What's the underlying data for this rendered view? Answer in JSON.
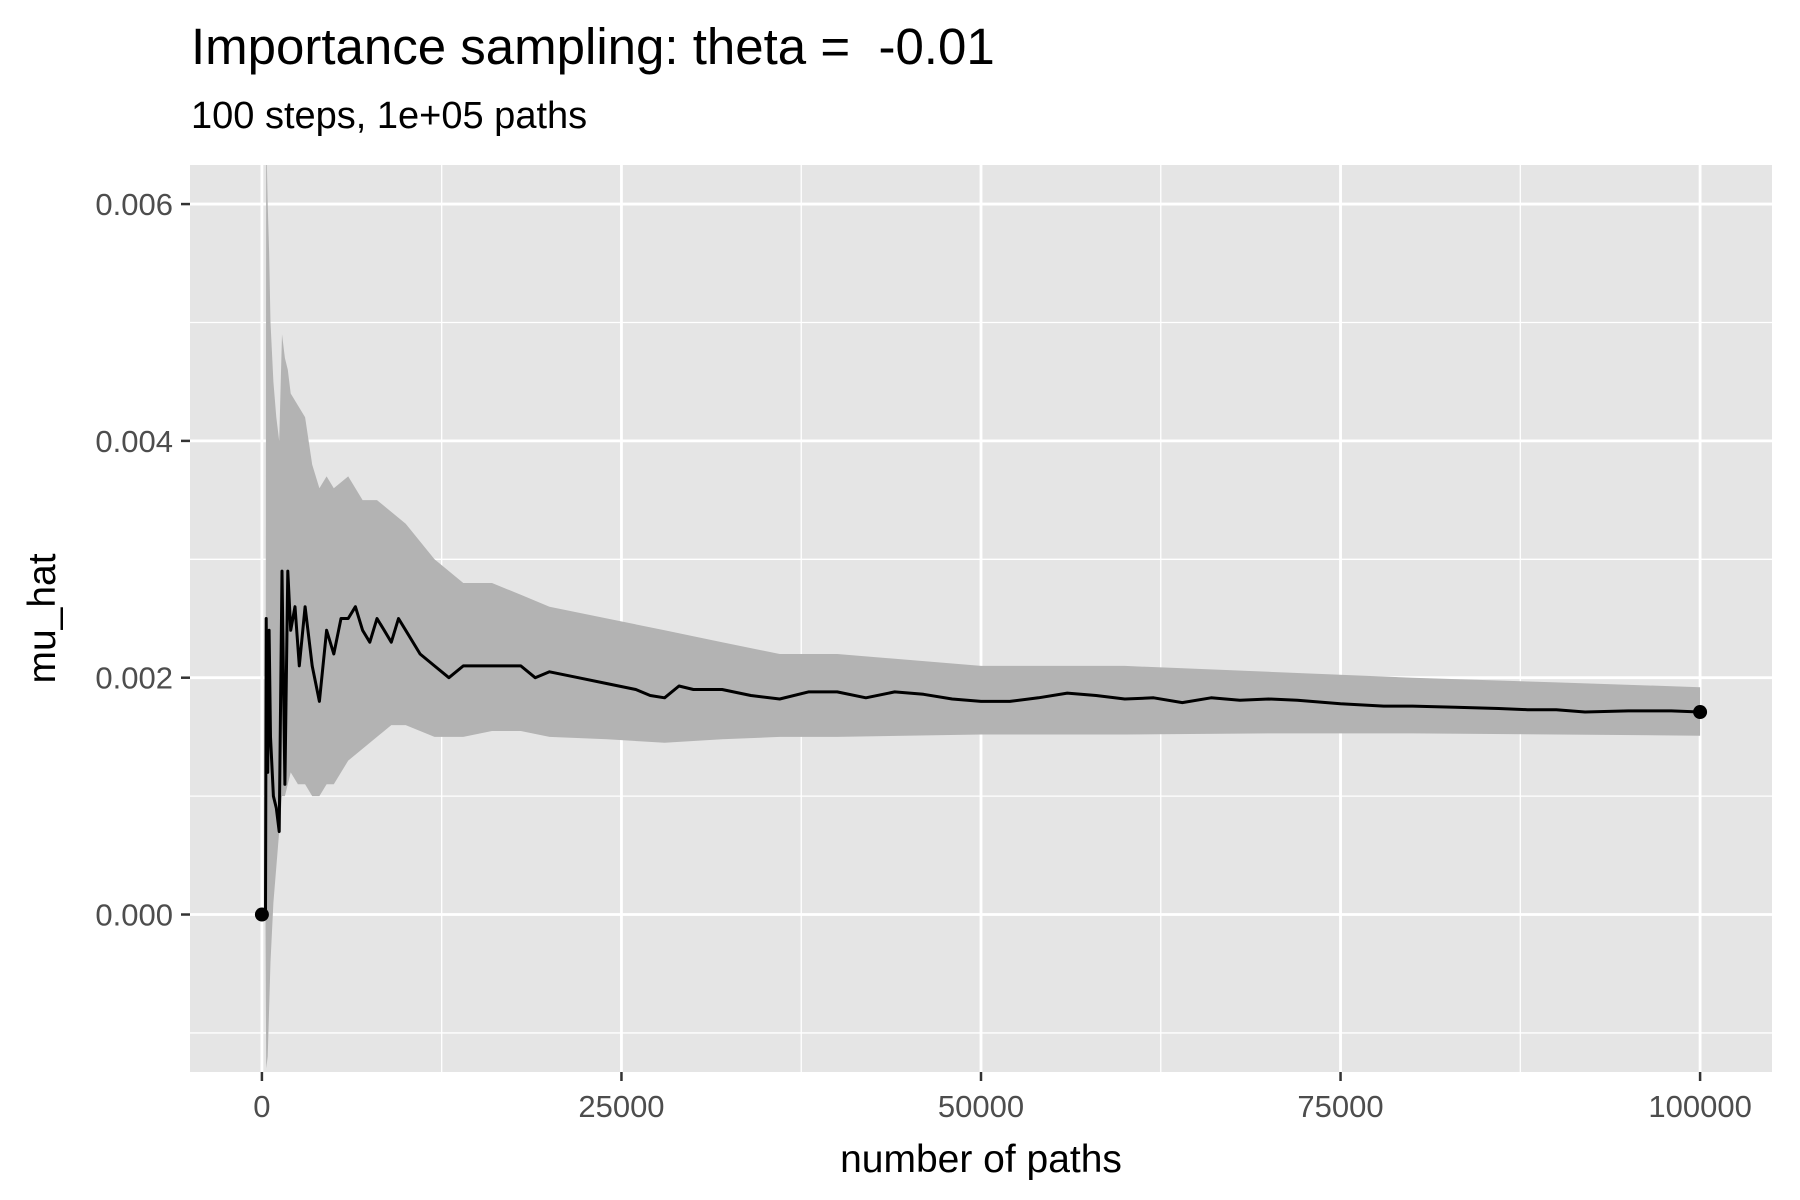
{
  "chart_data": {
    "type": "line",
    "title": "Importance sampling: theta =  -0.01",
    "subtitle": "100 steps, 1e+05 paths",
    "xlabel": "number of paths",
    "ylabel": "mu_hat",
    "xlim": [
      -5000,
      105000
    ],
    "ylim": [
      -0.00133,
      0.00633
    ],
    "x_ticks": [
      0,
      25000,
      50000,
      75000,
      100000
    ],
    "x_tick_labels": [
      "0",
      "25000",
      "50000",
      "75000",
      "100000"
    ],
    "y_ticks": [
      0.0,
      0.002,
      0.004,
      0.006
    ],
    "y_tick_labels": [
      "0.000",
      "0.002",
      "0.004",
      "0.006"
    ],
    "grid": true,
    "colors": {
      "panel": "#e5e5e5",
      "grid": "#ffffff",
      "line": "#000000",
      "ribbon": "#b3b3b3"
    },
    "series": [
      {
        "values": [
          [
            0,
            0.0
          ],
          [
            250,
            0.0
          ],
          [
            300,
            0.0025
          ],
          [
            400,
            0.0012
          ],
          [
            500,
            0.0024
          ],
          [
            600,
            0.0015
          ],
          [
            800,
            0.001
          ],
          [
            1000,
            0.0009
          ],
          [
            1200,
            0.0007
          ],
          [
            1400,
            0.0029
          ],
          [
            1600,
            0.0011
          ],
          [
            1800,
            0.0029
          ],
          [
            2000,
            0.0024
          ],
          [
            2300,
            0.0026
          ],
          [
            2600,
            0.0021
          ],
          [
            3000,
            0.0026
          ],
          [
            3500,
            0.0021
          ],
          [
            4000,
            0.0018
          ],
          [
            4500,
            0.0024
          ],
          [
            5000,
            0.0022
          ],
          [
            5500,
            0.0025
          ],
          [
            6000,
            0.0025
          ],
          [
            6500,
            0.0026
          ],
          [
            7000,
            0.0024
          ],
          [
            7500,
            0.0023
          ],
          [
            8000,
            0.0025
          ],
          [
            8500,
            0.0024
          ],
          [
            9000,
            0.0023
          ],
          [
            9500,
            0.0025
          ],
          [
            10000,
            0.0024
          ],
          [
            11000,
            0.0022
          ],
          [
            12000,
            0.0021
          ],
          [
            13000,
            0.002
          ],
          [
            14000,
            0.0021
          ],
          [
            15000,
            0.0021
          ],
          [
            16000,
            0.0021
          ],
          [
            17000,
            0.0021
          ],
          [
            18000,
            0.0021
          ],
          [
            19000,
            0.002
          ],
          [
            20000,
            0.00205
          ],
          [
            22000,
            0.002
          ],
          [
            24000,
            0.00195
          ],
          [
            26000,
            0.0019
          ],
          [
            27000,
            0.00185
          ],
          [
            28000,
            0.00183
          ],
          [
            29000,
            0.00193
          ],
          [
            30000,
            0.0019
          ],
          [
            32000,
            0.0019
          ],
          [
            34000,
            0.00185
          ],
          [
            36000,
            0.00182
          ],
          [
            38000,
            0.00188
          ],
          [
            40000,
            0.00188
          ],
          [
            42000,
            0.00183
          ],
          [
            44000,
            0.00188
          ],
          [
            46000,
            0.00186
          ],
          [
            48000,
            0.00182
          ],
          [
            50000,
            0.0018
          ],
          [
            52000,
            0.0018
          ],
          [
            54000,
            0.00183
          ],
          [
            56000,
            0.00187
          ],
          [
            58000,
            0.00185
          ],
          [
            60000,
            0.00182
          ],
          [
            62000,
            0.00183
          ],
          [
            64000,
            0.00179
          ],
          [
            66000,
            0.00183
          ],
          [
            68000,
            0.00181
          ],
          [
            70000,
            0.00182
          ],
          [
            72000,
            0.00181
          ],
          [
            75000,
            0.00178
          ],
          [
            78000,
            0.00176
          ],
          [
            80000,
            0.00176
          ],
          [
            83000,
            0.00175
          ],
          [
            86000,
            0.00174
          ],
          [
            88000,
            0.00173
          ],
          [
            90000,
            0.00173
          ],
          [
            92000,
            0.00171
          ],
          [
            95000,
            0.00172
          ],
          [
            98000,
            0.00172
          ],
          [
            100000,
            0.00171
          ]
        ]
      }
    ],
    "ribbon": {
      "x": [
        0,
        250,
        300,
        400,
        500,
        600,
        800,
        1000,
        1200,
        1400,
        1600,
        1800,
        2000,
        2500,
        3000,
        3500,
        4000,
        4500,
        5000,
        6000,
        7000,
        8000,
        9000,
        10000,
        12000,
        14000,
        16000,
        18000,
        20000,
        24000,
        28000,
        32000,
        36000,
        40000,
        50000,
        60000,
        70000,
        80000,
        90000,
        100000
      ],
      "upper": [
        0.0,
        0.0,
        0.0066,
        0.006,
        0.0056,
        0.005,
        0.0045,
        0.0042,
        0.004,
        0.0049,
        0.0047,
        0.0046,
        0.0044,
        0.0043,
        0.0042,
        0.0038,
        0.0036,
        0.0037,
        0.0036,
        0.0037,
        0.0035,
        0.0035,
        0.0034,
        0.0033,
        0.003,
        0.0028,
        0.0028,
        0.0027,
        0.0026,
        0.0025,
        0.0024,
        0.0023,
        0.0022,
        0.0022,
        0.0021,
        0.0021,
        0.00205,
        0.002,
        0.00196,
        0.00192
      ],
      "lower": [
        0.0,
        0.0,
        -0.0013,
        -0.0012,
        -0.0008,
        -0.0004,
        0.0001,
        0.0004,
        0.0007,
        0.001,
        0.001,
        0.0011,
        0.0012,
        0.0011,
        0.0011,
        0.001,
        0.001,
        0.0011,
        0.0011,
        0.0013,
        0.0014,
        0.0015,
        0.0016,
        0.0016,
        0.0015,
        0.0015,
        0.00155,
        0.00155,
        0.0015,
        0.00148,
        0.00145,
        0.00148,
        0.0015,
        0.0015,
        0.00152,
        0.00152,
        0.00153,
        0.00153,
        0.00152,
        0.00151
      ]
    },
    "endpoints": [
      [
        0,
        0.0
      ],
      [
        100000,
        0.00171
      ]
    ]
  }
}
